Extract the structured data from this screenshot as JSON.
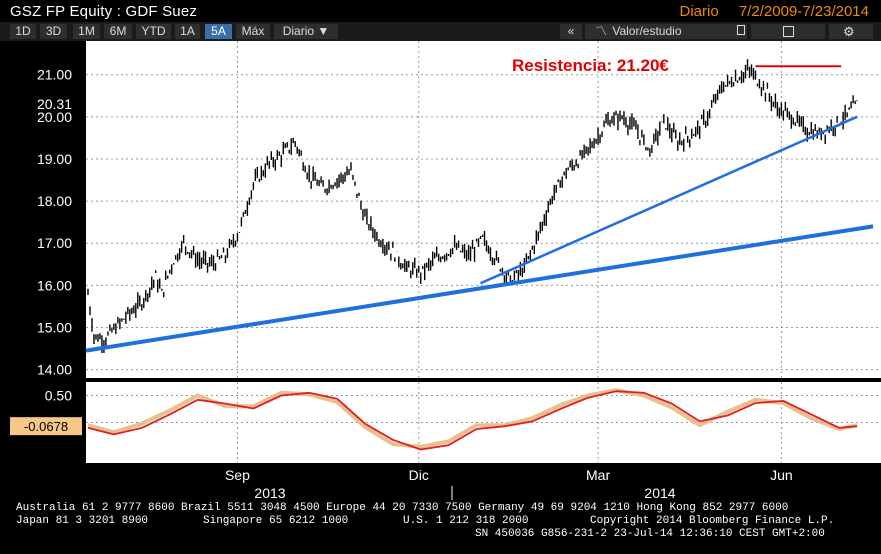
{
  "header": {
    "title": "GSZ FP Equity : GDF Suez",
    "frequency": "Diario",
    "date_range": "7/2/2009-7/23/2014"
  },
  "toolbar": {
    "ranges": [
      "1D",
      "3D",
      "1M",
      "6M",
      "YTD",
      "1A",
      "5A",
      "Máx"
    ],
    "active_range": "5A",
    "period_select": "Diario ▼",
    "collapse_label": "«",
    "study_label": "Valor/estudio",
    "pin_icon": "pin-icon",
    "edit_icon": "edit-icon",
    "settings_icon": "gear-icon"
  },
  "chart_data": [
    {
      "type": "line",
      "title": "",
      "xlabel": "",
      "ylabel": "",
      "ylim": [
        13.8,
        21.8
      ],
      "y_ticks": [
        "21.00",
        "20.00",
        "19.00",
        "18.00",
        "17.00",
        "16.00",
        "15.00",
        "14.00"
      ],
      "y_tick_values": [
        21,
        20,
        19,
        18,
        17,
        16,
        15,
        14
      ],
      "last_price_label": "20.31",
      "last_price": 20.31,
      "x_ticks": [
        "Sep",
        "Dic",
        "Mar",
        "Jun"
      ],
      "x_year_labels": [
        "2013",
        "2014"
      ],
      "grid": true,
      "series": [
        {
          "style": "ohlc-bars",
          "color": "#000000",
          "x": [
            "2013-07-02",
            "2013-07-05",
            "2013-07-10",
            "2013-07-16",
            "2013-07-22",
            "2013-07-29",
            "2013-08-05",
            "2013-08-08",
            "2013-08-13",
            "2013-08-19",
            "2013-08-26",
            "2013-09-02",
            "2013-09-09",
            "2013-09-16",
            "2013-09-23",
            "2013-10-01",
            "2013-10-07",
            "2013-10-14",
            "2013-10-21",
            "2013-10-28",
            "2013-11-04",
            "2013-11-11",
            "2013-11-18",
            "2013-11-25",
            "2013-12-02",
            "2013-12-09",
            "2013-12-16",
            "2013-12-23",
            "2014-01-02",
            "2014-01-09",
            "2014-01-16",
            "2014-01-23",
            "2014-01-30",
            "2014-02-06",
            "2014-02-13",
            "2014-02-20",
            "2014-02-27",
            "2014-03-06",
            "2014-03-13",
            "2014-03-20",
            "2014-03-27",
            "2014-04-03",
            "2014-04-10",
            "2014-04-17",
            "2014-04-24",
            "2014-05-02",
            "2014-05-09",
            "2014-05-16",
            "2014-05-23",
            "2014-05-30",
            "2014-06-06",
            "2014-06-13",
            "2014-06-20",
            "2014-06-27",
            "2014-07-04",
            "2014-07-11",
            "2014-07-17",
            "2014-07-23"
          ],
          "values": [
            15.8,
            14.8,
            14.7,
            15.0,
            15.3,
            15.6,
            16.2,
            15.8,
            16.5,
            17.0,
            16.6,
            16.5,
            16.7,
            17.3,
            18.4,
            18.9,
            19.1,
            19.4,
            18.6,
            18.3,
            18.5,
            18.7,
            17.6,
            17.1,
            16.8,
            16.4,
            16.3,
            16.6,
            16.9,
            16.7,
            17.1,
            16.6,
            16.1,
            16.4,
            17.2,
            18.1,
            18.7,
            19.0,
            19.4,
            19.9,
            20.0,
            19.7,
            19.2,
            19.9,
            19.4,
            19.6,
            20.0,
            20.7,
            20.9,
            21.1,
            20.7,
            20.2,
            20.0,
            19.7,
            19.6,
            19.8,
            20.0,
            20.31
          ]
        },
        {
          "name": "",
          "style": "annotation-line",
          "color": "#1e6fe0",
          "x": [
            "2013-07-01",
            "2014-07-31"
          ],
          "values": [
            14.45,
            17.4
          ]
        },
        {
          "name": "",
          "style": "annotation-line",
          "color": "#1e6fe0",
          "x": [
            "2014-01-15",
            "2014-07-23"
          ],
          "values": [
            16.05,
            20.0
          ]
        },
        {
          "name": "",
          "style": "annotation-line",
          "color": "#e00000",
          "x": [
            "2014-06-02",
            "2014-07-15"
          ],
          "values": [
            21.2,
            21.2
          ]
        }
      ],
      "annotations": [
        {
          "text": "Resistencia: 21.20€",
          "color": "#e00000"
        }
      ]
    },
    {
      "type": "line",
      "title": "",
      "ylim": [
        -0.75,
        0.75
      ],
      "y_ticks": [
        "0.50"
      ],
      "y_tick_values": [
        0.5
      ],
      "last_value_label": "-0.0678",
      "last_value": -0.0678,
      "zero_line": 0.0,
      "series": [
        {
          "name": "",
          "color": "#e02020",
          "x": [
            "2013-07-02",
            "2013-07-15",
            "2013-07-29",
            "2013-08-12",
            "2013-08-26",
            "2013-09-09",
            "2013-09-23",
            "2013-10-07",
            "2013-10-21",
            "2013-11-04",
            "2013-11-18",
            "2013-12-02",
            "2013-12-16",
            "2013-12-30",
            "2014-01-13",
            "2014-01-27",
            "2014-02-10",
            "2014-02-24",
            "2014-03-10",
            "2014-03-24",
            "2014-04-07",
            "2014-04-21",
            "2014-05-05",
            "2014-05-19",
            "2014-06-02",
            "2014-06-16",
            "2014-06-30",
            "2014-07-14",
            "2014-07-23"
          ],
          "values": [
            -0.1,
            -0.22,
            -0.1,
            0.15,
            0.42,
            0.35,
            0.26,
            0.5,
            0.55,
            0.44,
            -0.02,
            -0.32,
            -0.5,
            -0.42,
            -0.12,
            -0.07,
            0.02,
            0.25,
            0.46,
            0.58,
            0.55,
            0.35,
            0.02,
            0.13,
            0.36,
            0.4,
            0.15,
            -0.1,
            -0.0678
          ]
        },
        {
          "name": "",
          "color": "#e8c090",
          "x": [
            "2013-07-02",
            "2013-07-15",
            "2013-07-29",
            "2013-08-12",
            "2013-08-26",
            "2013-09-09",
            "2013-09-23",
            "2013-10-07",
            "2013-10-21",
            "2013-11-04",
            "2013-11-18",
            "2013-12-02",
            "2013-12-16",
            "2013-12-30",
            "2014-01-13",
            "2014-01-27",
            "2014-02-10",
            "2014-02-24",
            "2014-03-10",
            "2014-03-24",
            "2014-04-07",
            "2014-04-21",
            "2014-05-05",
            "2014-05-19",
            "2014-06-02",
            "2014-06-16",
            "2014-06-30",
            "2014-07-14",
            "2014-07-23"
          ],
          "values": [
            -0.05,
            -0.18,
            -0.02,
            0.22,
            0.5,
            0.3,
            0.3,
            0.55,
            0.52,
            0.38,
            -0.08,
            -0.4,
            -0.45,
            -0.35,
            -0.05,
            -0.05,
            0.08,
            0.32,
            0.5,
            0.6,
            0.5,
            0.28,
            -0.05,
            0.2,
            0.42,
            0.36,
            0.08,
            -0.12,
            -0.05
          ]
        }
      ]
    }
  ],
  "footer": {
    "line1": "Australia 61 2 9777 8600 Brazil 5511 3048 4500 Europe 44 20 7330 7500 Germany 49 69 9204 1210 Hong Kong 852 2977 6000",
    "line2_left": "Japan 81 3 3201 8900",
    "line2_mid1": "Singapore 65 6212 1000",
    "line2_mid2": "U.S. 1 212 318 2000",
    "line2_right": "Copyright 2014 Bloomberg Finance L.P.",
    "line3": "SN 450036 G856-231-2 23-Jul-14 12:36:10 CEST GMT+2:00"
  }
}
